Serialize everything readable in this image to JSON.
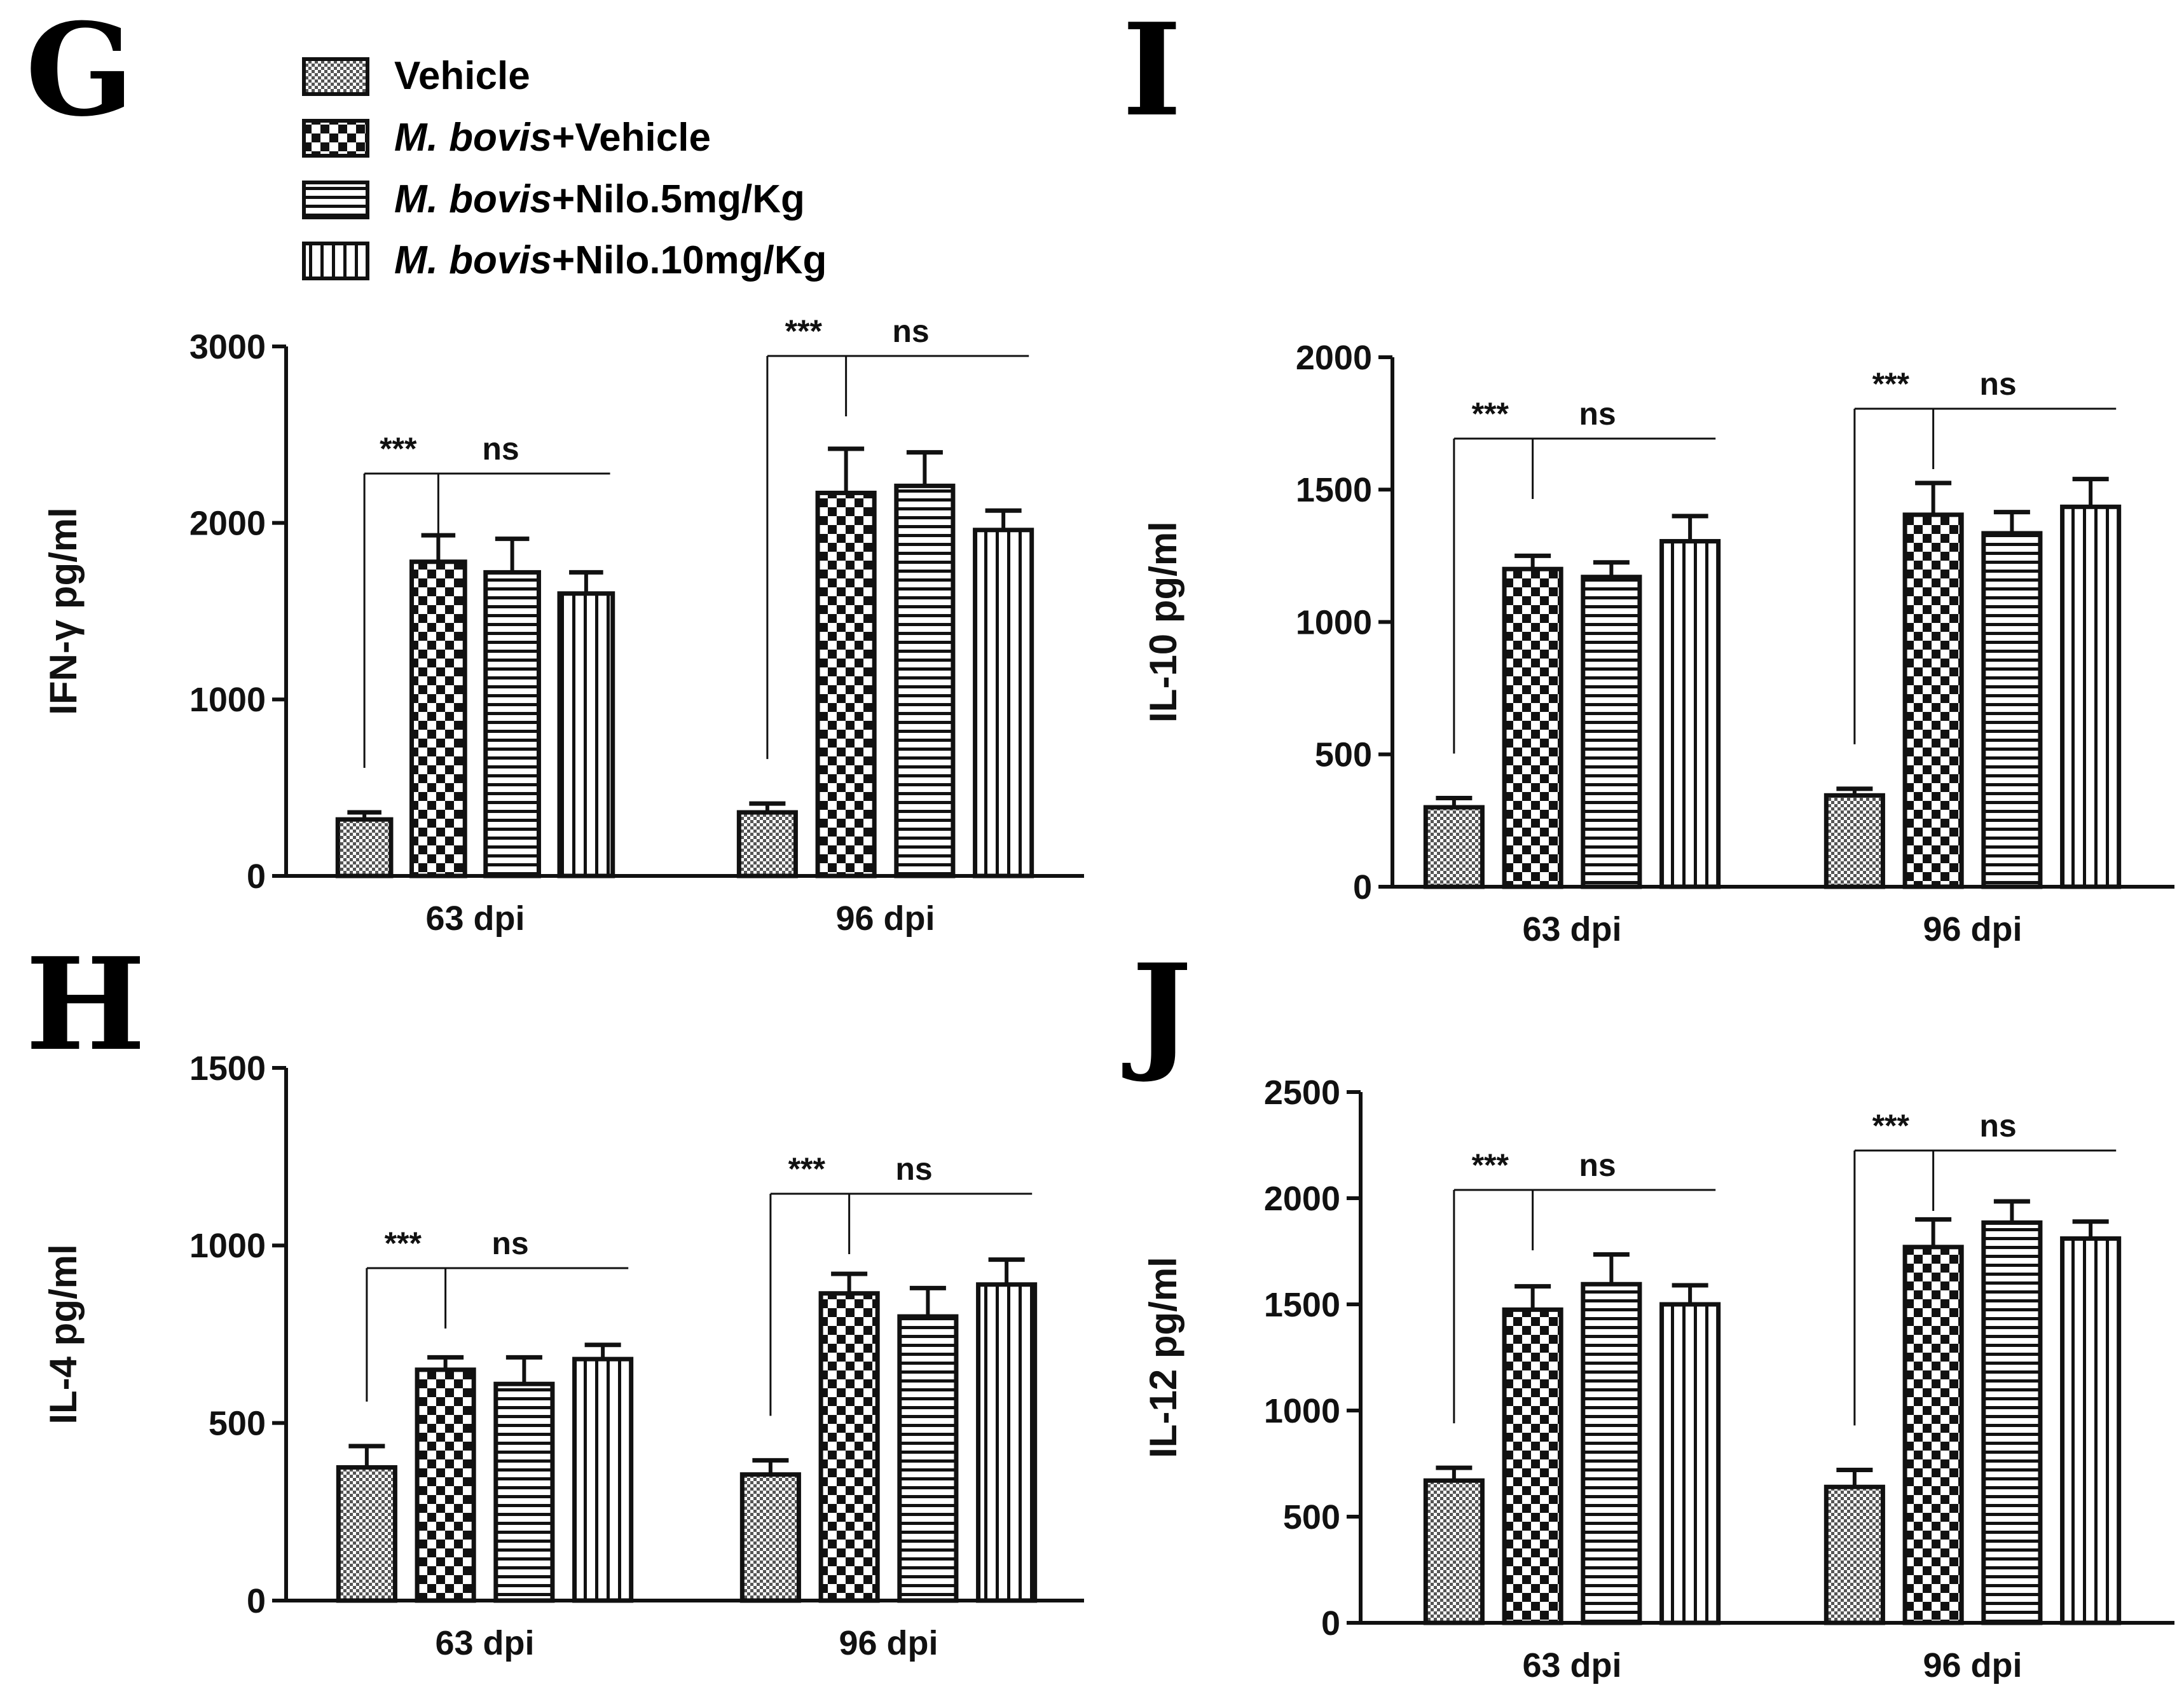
{
  "panels": {
    "G": "G",
    "H": "H",
    "I": "I",
    "J": "J"
  },
  "legend": [
    {
      "name_italic": "",
      "name_rest": "Vehicle",
      "pattern": "fine"
    },
    {
      "name_italic": "M. bovis",
      "name_rest": "+Vehicle",
      "pattern": "checker"
    },
    {
      "name_italic": "M. bovis",
      "name_rest": "+Nilo.5mg/Kg",
      "pattern": "hlines"
    },
    {
      "name_italic": "M. bovis",
      "name_rest": "+Nilo.10mg/Kg",
      "pattern": "vlines"
    }
  ],
  "colors": {
    "ink": "#111111",
    "background": "#ffffff"
  },
  "chart_data": [
    {
      "panel": "G",
      "type": "bar",
      "ylabel": "IFN-γ pg/ml",
      "ylim": [
        0,
        3000
      ],
      "yticks": [
        0,
        1000,
        2000,
        3000
      ],
      "categories": [
        "63 dpi",
        "96 dpi"
      ],
      "series": [
        {
          "name": "Vehicle",
          "values": [
            320,
            360
          ],
          "errors": [
            40,
            50
          ]
        },
        {
          "name": "M. bovis+Vehicle",
          "values": [
            1780,
            2170
          ],
          "errors": [
            150,
            250
          ]
        },
        {
          "name": "M. bovis+Nilo.5mg/Kg",
          "values": [
            1720,
            2210
          ],
          "errors": [
            190,
            190
          ]
        },
        {
          "name": "M. bovis+Nilo.10mg/Kg",
          "values": [
            1600,
            1960
          ],
          "errors": [
            120,
            110
          ]
        }
      ],
      "significance": [
        {
          "category": "63 dpi",
          "left": "***",
          "right": "ns"
        },
        {
          "category": "96 dpi",
          "left": "***",
          "right": "ns"
        }
      ]
    },
    {
      "panel": "I",
      "type": "bar",
      "ylabel": "IL-10 pg/ml",
      "ylim": [
        0,
        2000
      ],
      "yticks": [
        0,
        500,
        1000,
        1500,
        2000
      ],
      "categories": [
        "63 dpi",
        "96 dpi"
      ],
      "series": [
        {
          "name": "Vehicle",
          "values": [
            300,
            345
          ],
          "errors": [
            35,
            25
          ]
        },
        {
          "name": "M. bovis+Vehicle",
          "values": [
            1200,
            1405
          ],
          "errors": [
            50,
            120
          ]
        },
        {
          "name": "M. bovis+Nilo.5mg/Kg",
          "values": [
            1170,
            1335
          ],
          "errors": [
            55,
            80
          ]
        },
        {
          "name": "M. bovis+Nilo.10mg/Kg",
          "values": [
            1305,
            1435
          ],
          "errors": [
            95,
            105
          ]
        }
      ],
      "significance": [
        {
          "category": "63 dpi",
          "left": "***",
          "right": "ns"
        },
        {
          "category": "96 dpi",
          "left": "***",
          "right": "ns"
        }
      ]
    },
    {
      "panel": "H",
      "type": "bar",
      "ylabel": "IL-4 pg/ml",
      "ylim": [
        0,
        1500
      ],
      "yticks": [
        0,
        500,
        1000,
        1500
      ],
      "categories": [
        "63 dpi",
        "96 dpi"
      ],
      "series": [
        {
          "name": "Vehicle",
          "values": [
            375,
            355
          ],
          "errors": [
            60,
            40
          ]
        },
        {
          "name": "M. bovis+Vehicle",
          "values": [
            650,
            865
          ],
          "errors": [
            35,
            55
          ]
        },
        {
          "name": "M. bovis+Nilo.5mg/Kg",
          "values": [
            610,
            800
          ],
          "errors": [
            75,
            80
          ]
        },
        {
          "name": "M. bovis+Nilo.10mg/Kg",
          "values": [
            680,
            890
          ],
          "errors": [
            40,
            70
          ]
        }
      ],
      "significance": [
        {
          "category": "63 dpi",
          "left": "***",
          "right": "ns"
        },
        {
          "category": "96 dpi",
          "left": "***",
          "right": "ns"
        }
      ]
    },
    {
      "panel": "J",
      "type": "bar",
      "ylabel": "IL-12 pg/ml",
      "ylim": [
        0,
        2500
      ],
      "yticks": [
        0,
        500,
        1000,
        1500,
        2000,
        2500
      ],
      "categories": [
        "63 dpi",
        "96 dpi"
      ],
      "series": [
        {
          "name": "Vehicle",
          "values": [
            670,
            640
          ],
          "errors": [
            60,
            80
          ]
        },
        {
          "name": "M. bovis+Vehicle",
          "values": [
            1475,
            1770
          ],
          "errors": [
            110,
            130
          ]
        },
        {
          "name": "M. bovis+Nilo.5mg/Kg",
          "values": [
            1595,
            1885
          ],
          "errors": [
            140,
            100
          ]
        },
        {
          "name": "M. bovis+Nilo.10mg/Kg",
          "values": [
            1500,
            1810
          ],
          "errors": [
            90,
            80
          ]
        }
      ],
      "significance": [
        {
          "category": "63 dpi",
          "left": "***",
          "right": "ns"
        },
        {
          "category": "96 dpi",
          "left": "***",
          "right": "ns"
        }
      ]
    }
  ]
}
